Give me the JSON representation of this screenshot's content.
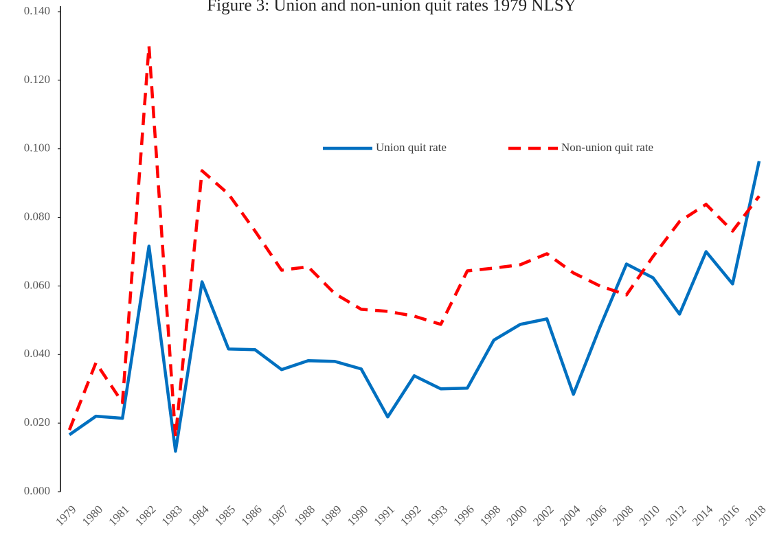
{
  "chart_data": {
    "type": "line",
    "title": "Figure 3: Union and non-union quit rates 1979 NLSY",
    "categories": [
      "1979",
      "1980",
      "1981",
      "1982",
      "1983",
      "1984",
      "1985",
      "1986",
      "1987",
      "1988",
      "1989",
      "1990",
      "1991",
      "1992",
      "1993",
      "1996",
      "1998",
      "2000",
      "2002",
      "2004",
      "2006",
      "2008",
      "2010",
      "2012",
      "2014",
      "2016",
      "2018"
    ],
    "series": [
      {
        "name": "Union quit rate",
        "color": "#0070c0",
        "line_style": "solid",
        "values": [
          0.0166,
          0.022,
          0.0214,
          0.0716,
          0.0118,
          0.0612,
          0.0416,
          0.0414,
          0.0356,
          0.0382,
          0.038,
          0.0358,
          0.0218,
          0.0338,
          0.03,
          0.0302,
          0.0442,
          0.0488,
          0.0504,
          0.0284,
          0.048,
          0.0664,
          0.0624,
          0.0518,
          0.07,
          0.0606,
          0.0964
        ]
      },
      {
        "name": "Non-union quit rate",
        "color": "#ff0000",
        "line_style": "dashed",
        "values": [
          0.018,
          0.0376,
          0.026,
          0.13,
          0.016,
          0.0936,
          0.0868,
          0.076,
          0.0646,
          0.0656,
          0.0578,
          0.0532,
          0.0526,
          0.0512,
          0.0488,
          0.0644,
          0.0652,
          0.0662,
          0.0694,
          0.0638,
          0.06,
          0.0574,
          0.0686,
          0.0788,
          0.0838,
          0.076,
          0.0862
        ]
      }
    ],
    "ylim": [
      0,
      0.14
    ],
    "yticks": [
      {
        "value": 0,
        "label": "0.000"
      },
      {
        "value": 0.02,
        "label": "0.020"
      },
      {
        "value": 0.04,
        "label": "0.040"
      },
      {
        "value": 0.06,
        "label": "0.060"
      },
      {
        "value": 0.08,
        "label": "0.080"
      },
      {
        "value": 0.1,
        "label": "0.100"
      },
      {
        "value": 0.12,
        "label": "0.120"
      },
      {
        "value": 0.14,
        "label": "0.140"
      }
    ],
    "grid": false,
    "legend": "upper right"
  }
}
